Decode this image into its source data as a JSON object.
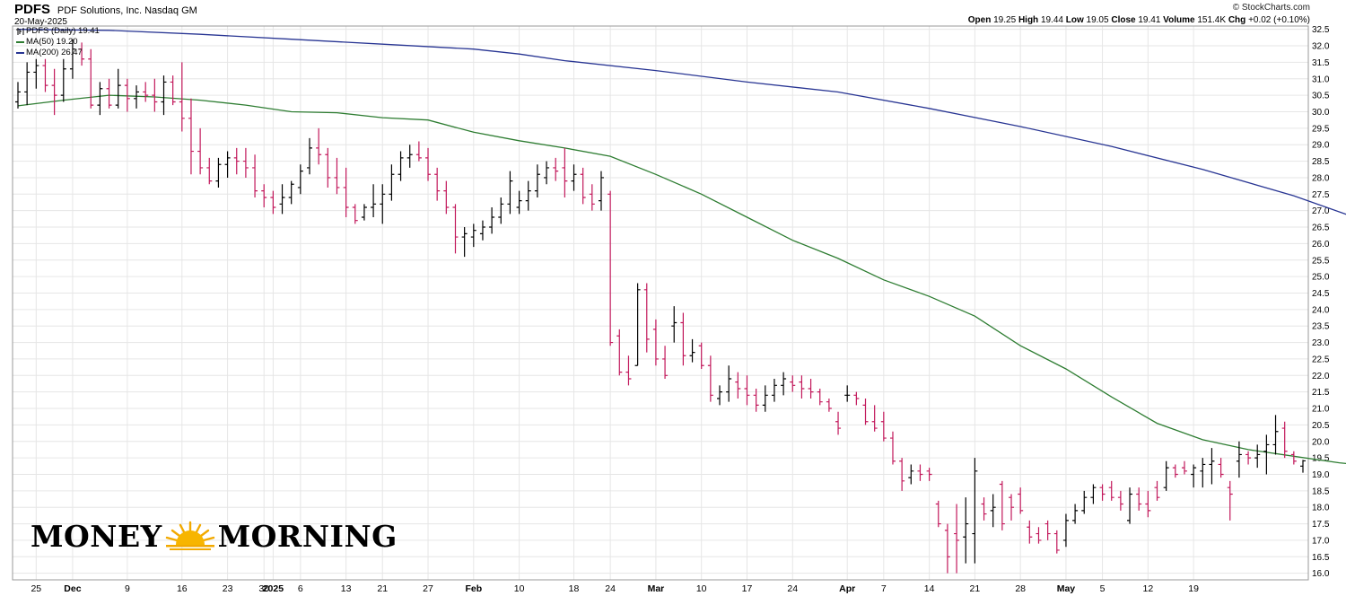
{
  "header": {
    "symbol": "PDFS",
    "company": "PDF Solutions, Inc.  Nasdaq GM",
    "date": "20-May-2025",
    "brand": "© StockCharts.com",
    "open_label": "Open",
    "open": "19.25",
    "high_label": "High",
    "high": "19.44",
    "low_label": "Low",
    "low": "19.05",
    "close_label": "Close",
    "close": "19.41",
    "volume_label": "Volume",
    "volume": "151.4K",
    "chg_label": "Chg",
    "chg": "+0.02 (+0.10%)"
  },
  "legend": {
    "price": "PDFS (Daily) 19.41",
    "ma50": "MA(50) 19.20",
    "ma200": "MA(200) 26.47"
  },
  "logo": {
    "left": "MONEY",
    "right": "MORNING",
    "sun_icon": "sun-icon"
  },
  "colors": {
    "up_bar": "#000000",
    "down_bar": "#c2185b",
    "ma50": "#2e7d32",
    "ma200": "#283593",
    "grid": "#e6e6e6"
  },
  "chart_data": {
    "type": "ohlc",
    "ylim": [
      15.8,
      32.6
    ],
    "y_ticks": [
      "16.0",
      "16.5",
      "17.0",
      "17.5",
      "18.0",
      "18.5",
      "19.0",
      "19.5",
      "20.0",
      "20.5",
      "21.0",
      "21.5",
      "22.0",
      "22.5",
      "23.0",
      "23.5",
      "24.0",
      "24.5",
      "25.0",
      "25.5",
      "26.0",
      "26.5",
      "27.0",
      "27.5",
      "28.0",
      "28.5",
      "29.0",
      "29.5",
      "30.0",
      "30.5",
      "31.0",
      "31.5",
      "32.0",
      "32.5"
    ],
    "x_ticks": [
      "25",
      "Dec",
      "9",
      "16",
      "23",
      "30",
      "2025",
      "6",
      "13",
      "21",
      "27",
      "Feb",
      "10",
      "18",
      "24",
      "Mar",
      "10",
      "17",
      "24",
      "Apr",
      "7",
      "14",
      "21",
      "28",
      "May",
      "5",
      "12",
      "19"
    ],
    "x_tick_bold": [
      "Dec",
      "2025",
      "Feb",
      "Mar",
      "Apr",
      "May"
    ],
    "x_tick_bar_index": [
      2,
      6,
      12,
      18,
      23,
      27,
      28,
      31,
      36,
      40,
      45,
      50,
      55,
      61,
      65,
      70,
      75,
      80,
      85,
      91,
      95,
      100,
      105,
      110,
      115,
      119,
      124,
      129
    ],
    "bars": [
      {
        "o": 30.3,
        "h": 30.9,
        "l": 30.1,
        "c": 30.6
      },
      {
        "o": 30.6,
        "h": 31.5,
        "l": 30.2,
        "c": 31.2
      },
      {
        "o": 31.2,
        "h": 31.6,
        "l": 30.7,
        "c": 31.4
      },
      {
        "o": 31.4,
        "h": 31.6,
        "l": 30.6,
        "c": 30.8
      },
      {
        "o": 30.8,
        "h": 31.3,
        "l": 29.9,
        "c": 30.5
      },
      {
        "o": 30.5,
        "h": 31.6,
        "l": 30.3,
        "c": 31.3
      },
      {
        "o": 31.3,
        "h": 32.2,
        "l": 31.0,
        "c": 31.9
      },
      {
        "o": 31.9,
        "h": 32.1,
        "l": 31.4,
        "c": 31.6
      },
      {
        "o": 31.6,
        "h": 31.9,
        "l": 30.1,
        "c": 30.2
      },
      {
        "o": 30.2,
        "h": 30.9,
        "l": 29.9,
        "c": 30.7
      },
      {
        "o": 30.7,
        "h": 31.0,
        "l": 30.1,
        "c": 30.2
      },
      {
        "o": 30.2,
        "h": 31.3,
        "l": 30.1,
        "c": 30.8
      },
      {
        "o": 30.8,
        "h": 31.0,
        "l": 30.0,
        "c": 30.4
      },
      {
        "o": 30.4,
        "h": 30.8,
        "l": 30.1,
        "c": 30.6
      },
      {
        "o": 30.6,
        "h": 30.9,
        "l": 30.3,
        "c": 30.5
      },
      {
        "o": 30.5,
        "h": 31.0,
        "l": 30.0,
        "c": 30.3
      },
      {
        "o": 30.3,
        "h": 31.1,
        "l": 29.9,
        "c": 30.9
      },
      {
        "o": 30.9,
        "h": 31.1,
        "l": 30.2,
        "c": 30.3
      },
      {
        "o": 30.3,
        "h": 31.5,
        "l": 29.4,
        "c": 29.8
      },
      {
        "o": 29.8,
        "h": 30.4,
        "l": 28.1,
        "c": 28.8
      },
      {
        "o": 28.8,
        "h": 29.5,
        "l": 28.1,
        "c": 28.3
      },
      {
        "o": 28.3,
        "h": 28.6,
        "l": 27.8,
        "c": 27.9
      },
      {
        "o": 27.9,
        "h": 28.6,
        "l": 27.7,
        "c": 28.4
      },
      {
        "o": 28.4,
        "h": 28.8,
        "l": 28.0,
        "c": 28.6
      },
      {
        "o": 28.6,
        "h": 28.9,
        "l": 28.1,
        "c": 28.5
      },
      {
        "o": 28.5,
        "h": 28.9,
        "l": 28.0,
        "c": 28.3
      },
      {
        "o": 28.3,
        "h": 28.7,
        "l": 27.4,
        "c": 27.6
      },
      {
        "o": 27.6,
        "h": 27.8,
        "l": 27.1,
        "c": 27.4
      },
      {
        "o": 27.4,
        "h": 27.6,
        "l": 26.9,
        "c": 27.1
      },
      {
        "o": 27.2,
        "h": 27.8,
        "l": 26.9,
        "c": 27.4
      },
      {
        "o": 27.4,
        "h": 27.9,
        "l": 27.2,
        "c": 27.8
      },
      {
        "o": 27.7,
        "h": 28.4,
        "l": 27.5,
        "c": 28.2
      },
      {
        "o": 28.3,
        "h": 29.2,
        "l": 28.1,
        "c": 28.9
      },
      {
        "o": 28.9,
        "h": 29.5,
        "l": 28.4,
        "c": 28.7
      },
      {
        "o": 28.7,
        "h": 28.9,
        "l": 27.7,
        "c": 28.0
      },
      {
        "o": 28.0,
        "h": 28.6,
        "l": 27.5,
        "c": 27.7
      },
      {
        "o": 27.7,
        "h": 28.3,
        "l": 26.8,
        "c": 27.1
      },
      {
        "o": 27.1,
        "h": 27.2,
        "l": 26.6,
        "c": 26.7
      },
      {
        "o": 26.8,
        "h": 27.2,
        "l": 26.7,
        "c": 27.1
      },
      {
        "o": 27.1,
        "h": 27.8,
        "l": 26.8,
        "c": 27.2
      },
      {
        "o": 27.2,
        "h": 27.8,
        "l": 26.6,
        "c": 27.5
      },
      {
        "o": 27.5,
        "h": 28.4,
        "l": 27.3,
        "c": 28.1
      },
      {
        "o": 28.1,
        "h": 28.8,
        "l": 27.9,
        "c": 28.6
      },
      {
        "o": 28.6,
        "h": 29.0,
        "l": 28.3,
        "c": 28.7
      },
      {
        "o": 28.7,
        "h": 29.1,
        "l": 28.5,
        "c": 28.6
      },
      {
        "o": 28.6,
        "h": 28.9,
        "l": 27.9,
        "c": 28.1
      },
      {
        "o": 28.1,
        "h": 28.3,
        "l": 27.3,
        "c": 27.6
      },
      {
        "o": 27.6,
        "h": 27.9,
        "l": 26.9,
        "c": 27.1
      },
      {
        "o": 27.1,
        "h": 27.2,
        "l": 25.7,
        "c": 26.2
      },
      {
        "o": 26.2,
        "h": 26.5,
        "l": 25.6,
        "c": 26.3
      },
      {
        "o": 26.2,
        "h": 26.6,
        "l": 25.9,
        "c": 26.4
      },
      {
        "o": 26.3,
        "h": 26.7,
        "l": 26.1,
        "c": 26.5
      },
      {
        "o": 26.5,
        "h": 27.1,
        "l": 26.3,
        "c": 26.8
      },
      {
        "o": 26.8,
        "h": 27.4,
        "l": 26.6,
        "c": 27.2
      },
      {
        "o": 27.2,
        "h": 28.2,
        "l": 26.9,
        "c": 27.9
      },
      {
        "o": 27.1,
        "h": 27.6,
        "l": 26.9,
        "c": 27.3
      },
      {
        "o": 27.3,
        "h": 27.9,
        "l": 27.0,
        "c": 27.6
      },
      {
        "o": 27.6,
        "h": 28.4,
        "l": 27.4,
        "c": 28.1
      },
      {
        "o": 28.0,
        "h": 28.5,
        "l": 27.8,
        "c": 28.3
      },
      {
        "o": 28.3,
        "h": 28.6,
        "l": 27.9,
        "c": 28.2
      },
      {
        "o": 28.3,
        "h": 28.9,
        "l": 27.4,
        "c": 27.9
      },
      {
        "o": 27.9,
        "h": 28.4,
        "l": 27.6,
        "c": 28.1
      },
      {
        "o": 28.1,
        "h": 28.3,
        "l": 27.2,
        "c": 27.4
      },
      {
        "o": 27.5,
        "h": 27.8,
        "l": 27.0,
        "c": 27.2
      },
      {
        "o": 27.3,
        "h": 28.2,
        "l": 27.0,
        "c": 28.0
      },
      {
        "o": 27.5,
        "h": 27.6,
        "l": 22.9,
        "c": 23.0
      },
      {
        "o": 23.2,
        "h": 23.4,
        "l": 22.0,
        "c": 22.1
      },
      {
        "o": 22.1,
        "h": 22.6,
        "l": 21.7,
        "c": 21.9
      },
      {
        "o": 22.3,
        "h": 24.8,
        "l": 22.3,
        "c": 24.6
      },
      {
        "o": 24.6,
        "h": 24.8,
        "l": 22.7,
        "c": 23.1
      },
      {
        "o": 23.4,
        "h": 23.7,
        "l": 22.3,
        "c": 22.5
      },
      {
        "o": 22.5,
        "h": 22.9,
        "l": 21.9,
        "c": 22.0
      },
      {
        "o": 23.5,
        "h": 24.1,
        "l": 23.0,
        "c": 23.6
      },
      {
        "o": 23.6,
        "h": 23.9,
        "l": 22.3,
        "c": 22.6
      },
      {
        "o": 22.6,
        "h": 23.1,
        "l": 22.4,
        "c": 22.7
      },
      {
        "o": 22.9,
        "h": 23.0,
        "l": 22.2,
        "c": 22.3
      },
      {
        "o": 22.3,
        "h": 22.6,
        "l": 21.2,
        "c": 21.4
      },
      {
        "o": 21.3,
        "h": 21.7,
        "l": 21.1,
        "c": 21.5
      },
      {
        "o": 21.5,
        "h": 22.3,
        "l": 21.2,
        "c": 21.9
      },
      {
        "o": 21.8,
        "h": 22.1,
        "l": 21.3,
        "c": 21.6
      },
      {
        "o": 21.6,
        "h": 22.0,
        "l": 21.1,
        "c": 21.4
      },
      {
        "o": 21.4,
        "h": 21.6,
        "l": 20.9,
        "c": 21.1
      },
      {
        "o": 21.1,
        "h": 21.7,
        "l": 20.9,
        "c": 21.4
      },
      {
        "o": 21.4,
        "h": 21.9,
        "l": 21.2,
        "c": 21.7
      },
      {
        "o": 21.7,
        "h": 22.1,
        "l": 21.4,
        "c": 21.9
      },
      {
        "o": 21.8,
        "h": 22.0,
        "l": 21.5,
        "c": 21.7
      },
      {
        "o": 21.8,
        "h": 22.0,
        "l": 21.3,
        "c": 21.6
      },
      {
        "o": 21.6,
        "h": 21.9,
        "l": 21.3,
        "c": 21.5
      },
      {
        "o": 21.5,
        "h": 21.6,
        "l": 21.1,
        "c": 21.2
      },
      {
        "o": 21.2,
        "h": 21.3,
        "l": 20.9,
        "c": 21.0
      },
      {
        "o": 20.6,
        "h": 20.9,
        "l": 20.2,
        "c": 20.4
      },
      {
        "o": 21.4,
        "h": 21.7,
        "l": 21.2,
        "c": 21.4
      },
      {
        "o": 21.4,
        "h": 21.5,
        "l": 21.1,
        "c": 21.3
      },
      {
        "o": 21.1,
        "h": 21.3,
        "l": 20.5,
        "c": 20.6
      },
      {
        "o": 20.6,
        "h": 21.1,
        "l": 20.3,
        "c": 20.4
      },
      {
        "o": 20.6,
        "h": 20.9,
        "l": 20.0,
        "c": 20.1
      },
      {
        "o": 20.1,
        "h": 20.3,
        "l": 19.3,
        "c": 19.4
      },
      {
        "o": 19.4,
        "h": 19.5,
        "l": 18.5,
        "c": 18.8
      },
      {
        "o": 18.9,
        "h": 19.3,
        "l": 18.7,
        "c": 19.1
      },
      {
        "o": 19.1,
        "h": 19.3,
        "l": 18.8,
        "c": 19.0
      },
      {
        "o": 19.1,
        "h": 19.2,
        "l": 18.8,
        "c": 19.0
      },
      {
        "o": 18.1,
        "h": 18.2,
        "l": 17.4,
        "c": 17.5
      },
      {
        "o": 17.3,
        "h": 17.5,
        "l": 16.0,
        "c": 16.5
      },
      {
        "o": 17.2,
        "h": 18.1,
        "l": 16.0,
        "c": 17.0
      },
      {
        "o": 17.1,
        "h": 18.3,
        "l": 16.3,
        "c": 17.5
      },
      {
        "o": 17.2,
        "h": 19.5,
        "l": 16.3,
        "c": 19.1
      },
      {
        "o": 18.1,
        "h": 18.3,
        "l": 17.6,
        "c": 17.8
      },
      {
        "o": 17.9,
        "h": 18.4,
        "l": 17.4,
        "c": 18.0
      },
      {
        "o": 18.7,
        "h": 18.8,
        "l": 17.3,
        "c": 17.5
      },
      {
        "o": 18.3,
        "h": 18.4,
        "l": 17.6,
        "c": 18.0
      },
      {
        "o": 18.4,
        "h": 18.6,
        "l": 17.8,
        "c": 17.9
      },
      {
        "o": 17.4,
        "h": 17.6,
        "l": 16.9,
        "c": 17.1
      },
      {
        "o": 17.2,
        "h": 17.4,
        "l": 16.9,
        "c": 17.0
      },
      {
        "o": 17.5,
        "h": 17.6,
        "l": 17.0,
        "c": 17.2
      },
      {
        "o": 17.2,
        "h": 17.3,
        "l": 16.6,
        "c": 16.7
      },
      {
        "o": 17.0,
        "h": 17.8,
        "l": 16.8,
        "c": 17.6
      },
      {
        "o": 17.6,
        "h": 18.1,
        "l": 17.5,
        "c": 17.9
      },
      {
        "o": 17.9,
        "h": 18.5,
        "l": 17.8,
        "c": 18.3
      },
      {
        "o": 18.3,
        "h": 18.7,
        "l": 18.1,
        "c": 18.6
      },
      {
        "o": 18.6,
        "h": 18.7,
        "l": 18.2,
        "c": 18.4
      },
      {
        "o": 18.6,
        "h": 18.8,
        "l": 18.2,
        "c": 18.3
      },
      {
        "o": 18.3,
        "h": 18.5,
        "l": 17.9,
        "c": 18.1
      },
      {
        "o": 17.6,
        "h": 18.6,
        "l": 17.5,
        "c": 18.4
      },
      {
        "o": 18.4,
        "h": 18.6,
        "l": 17.9,
        "c": 18.1
      },
      {
        "o": 18.1,
        "h": 18.5,
        "l": 17.7,
        "c": 17.9
      },
      {
        "o": 18.6,
        "h": 18.8,
        "l": 18.2,
        "c": 18.3
      },
      {
        "o": 18.6,
        "h": 19.4,
        "l": 18.5,
        "c": 19.2
      },
      {
        "o": 19.2,
        "h": 19.3,
        "l": 18.9,
        "c": 19.0
      },
      {
        "o": 19.2,
        "h": 19.4,
        "l": 19.0,
        "c": 19.1
      },
      {
        "o": 19.0,
        "h": 19.3,
        "l": 18.6,
        "c": 19.2
      },
      {
        "o": 19.1,
        "h": 19.5,
        "l": 18.6,
        "c": 19.3
      },
      {
        "o": 19.3,
        "h": 19.8,
        "l": 18.7,
        "c": 19.4
      },
      {
        "o": 19.3,
        "h": 19.5,
        "l": 18.9,
        "c": 19.0
      },
      {
        "o": 18.6,
        "h": 18.8,
        "l": 17.6,
        "c": 18.4
      },
      {
        "o": 19.4,
        "h": 20.0,
        "l": 18.9,
        "c": 19.6
      },
      {
        "o": 19.6,
        "h": 19.7,
        "l": 19.3,
        "c": 19.5
      },
      {
        "o": 19.5,
        "h": 19.9,
        "l": 19.2,
        "c": 19.6
      },
      {
        "o": 19.7,
        "h": 20.2,
        "l": 19.0,
        "c": 19.9
      },
      {
        "o": 19.9,
        "h": 20.8,
        "l": 19.6,
        "c": 20.3
      },
      {
        "o": 20.4,
        "h": 20.6,
        "l": 19.5,
        "c": 19.7
      },
      {
        "o": 19.6,
        "h": 19.7,
        "l": 19.3,
        "c": 19.4
      },
      {
        "o": 19.25,
        "h": 19.44,
        "l": 19.05,
        "c": 19.41
      }
    ],
    "ma50": [
      [
        0,
        30.18
      ],
      [
        5,
        30.35
      ],
      [
        10,
        30.5
      ],
      [
        15,
        30.45
      ],
      [
        20,
        30.35
      ],
      [
        25,
        30.2
      ],
      [
        30,
        30.0
      ],
      [
        35,
        29.97
      ],
      [
        40,
        29.82
      ],
      [
        45,
        29.75
      ],
      [
        50,
        29.38
      ],
      [
        55,
        29.12
      ],
      [
        60,
        28.9
      ],
      [
        65,
        28.65
      ],
      [
        70,
        28.1
      ],
      [
        75,
        27.5
      ],
      [
        80,
        26.8
      ],
      [
        85,
        26.1
      ],
      [
        90,
        25.55
      ],
      [
        95,
        24.9
      ],
      [
        100,
        24.4
      ],
      [
        105,
        23.8
      ],
      [
        110,
        22.9
      ],
      [
        115,
        22.2
      ],
      [
        120,
        21.35
      ],
      [
        125,
        20.55
      ],
      [
        130,
        20.05
      ],
      [
        135,
        19.75
      ],
      [
        140,
        19.55
      ],
      [
        145,
        19.35
      ],
      [
        150,
        19.2
      ]
    ],
    "ma200": [
      [
        0,
        32.5
      ],
      [
        10,
        32.47
      ],
      [
        20,
        32.35
      ],
      [
        30,
        32.2
      ],
      [
        40,
        32.05
      ],
      [
        50,
        31.9
      ],
      [
        55,
        31.75
      ],
      [
        60,
        31.55
      ],
      [
        70,
        31.25
      ],
      [
        80,
        30.9
      ],
      [
        90,
        30.6
      ],
      [
        100,
        30.1
      ],
      [
        110,
        29.55
      ],
      [
        120,
        28.95
      ],
      [
        130,
        28.25
      ],
      [
        140,
        27.45
      ],
      [
        150,
        26.47
      ]
    ]
  }
}
